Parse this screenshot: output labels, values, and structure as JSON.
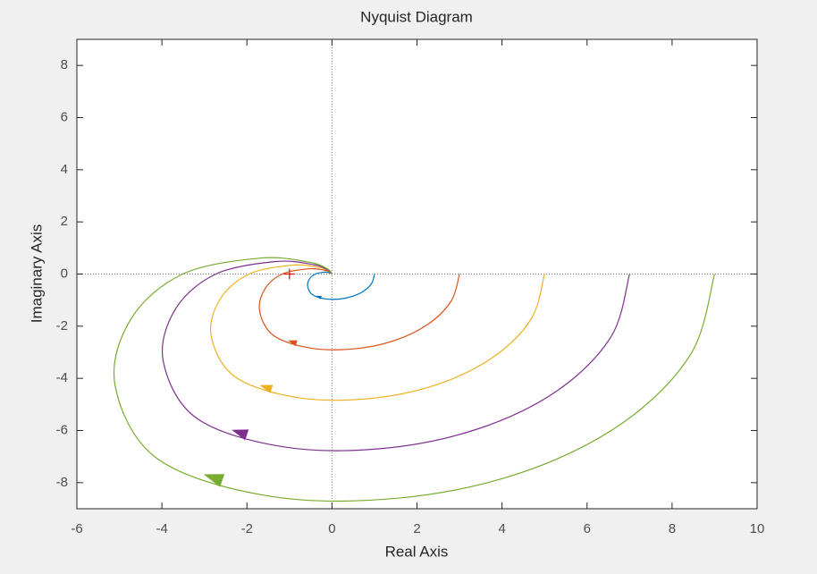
{
  "chart_data": {
    "type": "line",
    "title": "Nyquist Diagram",
    "x_label": "Real Axis",
    "y_label": "Imaginary Axis",
    "xlim": [
      -6,
      10
    ],
    "xticks": [
      -6,
      -4,
      -2,
      0,
      2,
      4,
      6,
      8,
      10
    ],
    "ylim": [
      -9,
      9
    ],
    "yticks": [
      -8,
      -6,
      -4,
      -2,
      0,
      2,
      4,
      6,
      8
    ],
    "critical_point": {
      "x": -1,
      "y": 0,
      "color": "#ff0000"
    },
    "series": [
      {
        "color": "#0072bd",
        "x": [
          1,
          0.94,
          0.76,
          0.49,
          0.17,
          -0.17,
          -0.46,
          -0.57,
          -0.53,
          -0.39,
          -0.19,
          -0.06,
          -0.01,
          0
        ],
        "y": [
          0,
          -0.34,
          -0.64,
          -0.85,
          -0.96,
          -0.95,
          -0.79,
          -0.48,
          -0.19,
          0,
          0.07,
          0.05,
          0.02,
          0
        ]
      },
      {
        "color": "#d95319",
        "x": [
          3,
          2.81,
          2.27,
          1.47,
          0.51,
          -0.5,
          -1.37,
          -1.7,
          -1.58,
          -1.17,
          -0.56,
          -0.18,
          -0.04,
          0
        ],
        "y": [
          0,
          -1.02,
          -1.91,
          -2.55,
          -2.87,
          -2.84,
          -2.36,
          -1.43,
          -0.58,
          0,
          0.2,
          0.15,
          0.07,
          0
        ]
      },
      {
        "color": "#edb120",
        "x": [
          5,
          4.69,
          3.79,
          2.45,
          0.85,
          -0.84,
          -2.28,
          -2.84,
          -2.63,
          -1.95,
          -0.94,
          -0.31,
          -0.06,
          0
        ],
        "y": [
          0,
          -1.71,
          -3.19,
          -4.25,
          -4.78,
          -4.73,
          -3.94,
          -2.38,
          -0.96,
          0,
          0.34,
          0.26,
          0.11,
          0
        ]
      },
      {
        "color": "#7e2f8e",
        "x": [
          7,
          6.57,
          5.31,
          3.43,
          1.18,
          -1.17,
          -3.19,
          -3.97,
          -3.68,
          -2.73,
          -1.32,
          -0.43,
          -0.09,
          0
        ],
        "y": [
          0,
          -2.39,
          -4.46,
          -5.94,
          -6.69,
          -6.62,
          -5.52,
          -3.33,
          -1.34,
          0,
          0.48,
          0.36,
          0.15,
          0
        ]
      },
      {
        "color": "#77ac30",
        "x": [
          9,
          8.44,
          6.82,
          4.41,
          1.52,
          -1.5,
          -4.1,
          -5.1,
          -4.73,
          -3.51,
          -1.69,
          -0.55,
          -0.11,
          0
        ],
        "y": [
          0,
          -3.07,
          -5.73,
          -7.64,
          -8.6,
          -8.51,
          -7.09,
          -4.28,
          -1.73,
          0,
          0.61,
          0.46,
          0.2,
          0
        ]
      }
    ]
  }
}
